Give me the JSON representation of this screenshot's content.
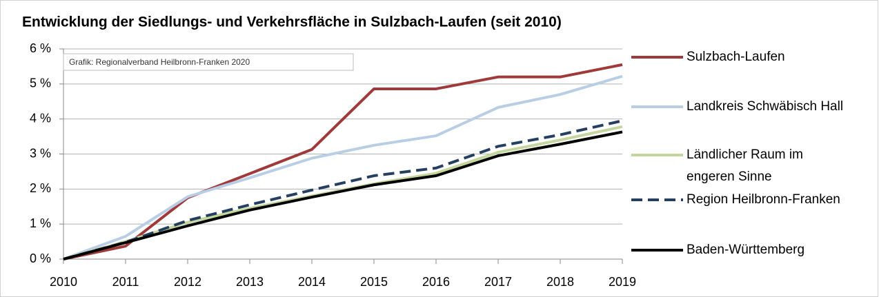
{
  "chart_data": {
    "type": "line",
    "title": "Entwicklung der Siedlungs- und Verkehrsfläche in Sulzbach-Laufen (seit 2010)",
    "annotation": "Grafik: Regionalverband Heilbronn-Franken 2020",
    "x": [
      2010,
      2011,
      2012,
      2013,
      2014,
      2015,
      2016,
      2017,
      2018,
      2019
    ],
    "xlim": [
      2010,
      2019
    ],
    "xticks": [
      2010,
      2011,
      2012,
      2013,
      2014,
      2015,
      2016,
      2017,
      2018,
      2019
    ],
    "ylim": [
      0,
      6
    ],
    "yticks": [
      {
        "value": 0,
        "label": "0 %"
      },
      {
        "value": 1,
        "label": "1 %"
      },
      {
        "value": 2,
        "label": "2 %"
      },
      {
        "value": 3,
        "label": "3 %"
      },
      {
        "value": 4,
        "label": "4 %"
      },
      {
        "value": 5,
        "label": "5 %"
      },
      {
        "value": 6,
        "label": "6 %"
      }
    ],
    "grid": true,
    "legend": "right",
    "series": [
      {
        "name": "Sulzbach-Laufen",
        "color": "#a0393a",
        "values": [
          0,
          0.37,
          1.75,
          2.44,
          3.13,
          4.86,
          4.86,
          5.2,
          5.2,
          5.55
        ]
      },
      {
        "name": "Landkreis Schwäbisch Hall",
        "color": "#b9cde5",
        "values": [
          0,
          0.65,
          1.78,
          2.32,
          2.88,
          3.25,
          3.52,
          4.33,
          4.7,
          5.22
        ]
      },
      {
        "name": "Ländlicher Raum im engeren Sinne",
        "color": "#c3d69b",
        "values": [
          0,
          0.5,
          1.05,
          1.45,
          1.8,
          2.15,
          2.45,
          3.05,
          3.4,
          3.78
        ]
      },
      {
        "name": "Region Heilbronn-Franken",
        "color": "#243f60",
        "dashed": true,
        "values": [
          0,
          0.48,
          1.1,
          1.55,
          1.97,
          2.38,
          2.6,
          3.22,
          3.55,
          3.95
        ]
      },
      {
        "name": "Baden-Württemberg",
        "color": "#000000",
        "values": [
          0,
          0.47,
          0.95,
          1.4,
          1.77,
          2.12,
          2.38,
          2.95,
          3.28,
          3.63
        ]
      }
    ]
  }
}
